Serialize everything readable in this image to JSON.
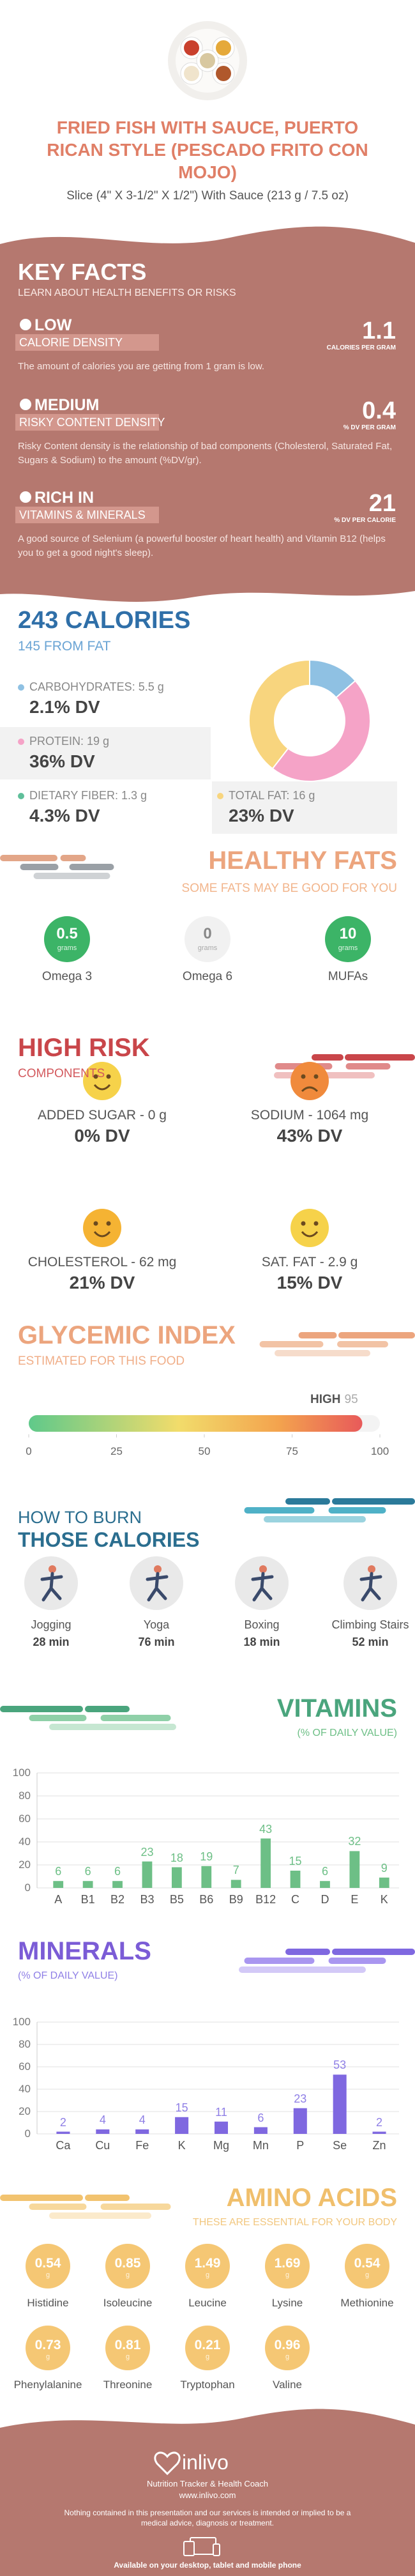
{
  "header": {
    "title": "FRIED FISH WITH SAUCE, PUERTO RICAN STYLE (PESCADO FRITO CON MOJO)",
    "subtitle": "Slice (4\" X 3-1/2\" X 1/2\") With Sauce (213 g / 7.5 oz)"
  },
  "key_facts": {
    "title": "KEY FACTS",
    "subtitle": "LEARN ABOUT HEALTH BENEFITS OR RISKS",
    "facts": [
      {
        "level": "LOW",
        "label": "CALORIE DENSITY",
        "value": 1.1,
        "unit": "CALORIES PER GRAM",
        "description": "The amount of calories you are getting from 1 gram is low."
      },
      {
        "level": "MEDIUM",
        "label": "RISKY CONTENT DENSITY",
        "value": 0.4,
        "unit": "% DV PER GRAM",
        "description": "Risky Content density is the relationship of bad components (Cholesterol, Saturated Fat, Sugars & Sodium) to the amount (%DV/gr)."
      },
      {
        "level": "RICH IN",
        "label": "VITAMINS & MINERALS",
        "value": 21,
        "unit": "% DV PER CALORIE",
        "description": "A good source of Selenium (a powerful booster of heart health) and Vitamin B12 (helps you to get a good night's sleep)."
      }
    ]
  },
  "calories": {
    "title": "243 CALORIES",
    "subtitle": "145 FROM FAT",
    "nutrients": [
      {
        "label": "CARBOHYDRATES: 5.5 g",
        "dv": "2.1% DV",
        "color": "#8fc1e3"
      },
      {
        "label": "PROTEIN: 19 g",
        "dv": "36% DV",
        "color": "#f5a3c7"
      },
      {
        "label": "DIETARY FIBER: 1.3 g",
        "dv": "4.3% DV",
        "color": "#5fbf9a"
      },
      {
        "label": "TOTAL FAT: 16 g",
        "dv": "23% DV",
        "color": "#f8d57e"
      }
    ],
    "donut": {
      "values": [
        5.5,
        19,
        16
      ],
      "colors": [
        "#8fc1e3",
        "#f5a3c7",
        "#f8d57e"
      ]
    }
  },
  "healthy_fats": {
    "title": "HEALTHY FATS",
    "subtitle": "SOME FATS MAY BE GOOD FOR YOU",
    "unit": "grams",
    "items": [
      {
        "name": "Omega 3",
        "value": 0.5
      },
      {
        "name": "Omega 6",
        "value": 0
      },
      {
        "name": "MUFAs",
        "value": 10
      }
    ]
  },
  "high_risk": {
    "title": "HIGH RISK",
    "subtitle": "COMPONENTS",
    "items": [
      {
        "label": "ADDED SUGAR - 0 g",
        "dv": "0% DV"
      },
      {
        "label": "SODIUM - 1064 mg",
        "dv": "43% DV"
      },
      {
        "label": "CHOLESTEROL - 62 mg",
        "dv": "21% DV"
      },
      {
        "label": "SAT. FAT - 2.9 g",
        "dv": "15% DV"
      }
    ]
  },
  "glycemic": {
    "title": "GLYCEMIC INDEX",
    "subtitle": "ESTIMATED FOR THIS FOOD",
    "level": "HIGH",
    "value": 95,
    "lim": [
      0,
      100
    ],
    "ticks": [
      0,
      25,
      50,
      75,
      100
    ]
  },
  "burn": {
    "title": "HOW TO BURN",
    "title2": "THOSE CALORIES",
    "activities": [
      {
        "name": "Jogging",
        "time": "28 min"
      },
      {
        "name": "Yoga",
        "time": "76 min"
      },
      {
        "name": "Boxing",
        "time": "18 min"
      },
      {
        "name": "Climbing Stairs",
        "time": "52 min"
      }
    ]
  },
  "chart_data": [
    {
      "type": "bar",
      "title": "VITAMINS",
      "subtitle": "(% OF DAILY VALUE)",
      "categories": [
        "A",
        "B1",
        "B2",
        "B3",
        "B5",
        "B6",
        "B9",
        "B12",
        "C",
        "D",
        "E",
        "K"
      ],
      "values": [
        6,
        6,
        6,
        23,
        18,
        19,
        7,
        43,
        15,
        6,
        32,
        9
      ],
      "color": "#6dbf86",
      "label_color": "#6dbf86",
      "ylim": [
        0,
        100
      ],
      "yticks": [
        0,
        20,
        40,
        60,
        80,
        100
      ],
      "grid": true
    },
    {
      "type": "bar",
      "title": "MINERALS",
      "subtitle": "(% OF DAILY VALUE)",
      "categories": [
        "Ca",
        "Cu",
        "Fe",
        "K",
        "Mg",
        "Mn",
        "P",
        "Se",
        "Zn"
      ],
      "values": [
        2,
        4,
        4,
        15,
        11,
        6,
        23,
        53,
        2
      ],
      "color": "#7f68e0",
      "label_color": "#8f7fe6",
      "ylim": [
        0,
        100
      ],
      "yticks": [
        0,
        20,
        40,
        60,
        80,
        100
      ],
      "grid": true
    }
  ],
  "amino": {
    "title": "AMINO ACIDS",
    "subtitle": "THESE ARE ESSENTIAL FOR YOUR BODY",
    "unit": "g",
    "items": [
      {
        "name": "Histidine",
        "value": 0.54
      },
      {
        "name": "Isoleucine",
        "value": 0.85
      },
      {
        "name": "Leucine",
        "value": 1.49
      },
      {
        "name": "Lysine",
        "value": 1.69
      },
      {
        "name": "Methionine",
        "value": 0.54
      },
      {
        "name": "Phenylalanine",
        "value": 0.73
      },
      {
        "name": "Threonine",
        "value": 0.81
      },
      {
        "name": "Tryptophan",
        "value": 0.21
      },
      {
        "name": "Valine",
        "value": 0.96
      }
    ]
  },
  "footer": {
    "brand": "inlivo",
    "tagline": "Nutrition Tracker & Health Coach",
    "url": "www.inlivo.com",
    "disclaimer": "Nothing contained in this presentation and our services is intended or implied to be a medical advice, diagnosis or treatment.",
    "availability": "Available on your desktop, tablet and mobile phone"
  }
}
